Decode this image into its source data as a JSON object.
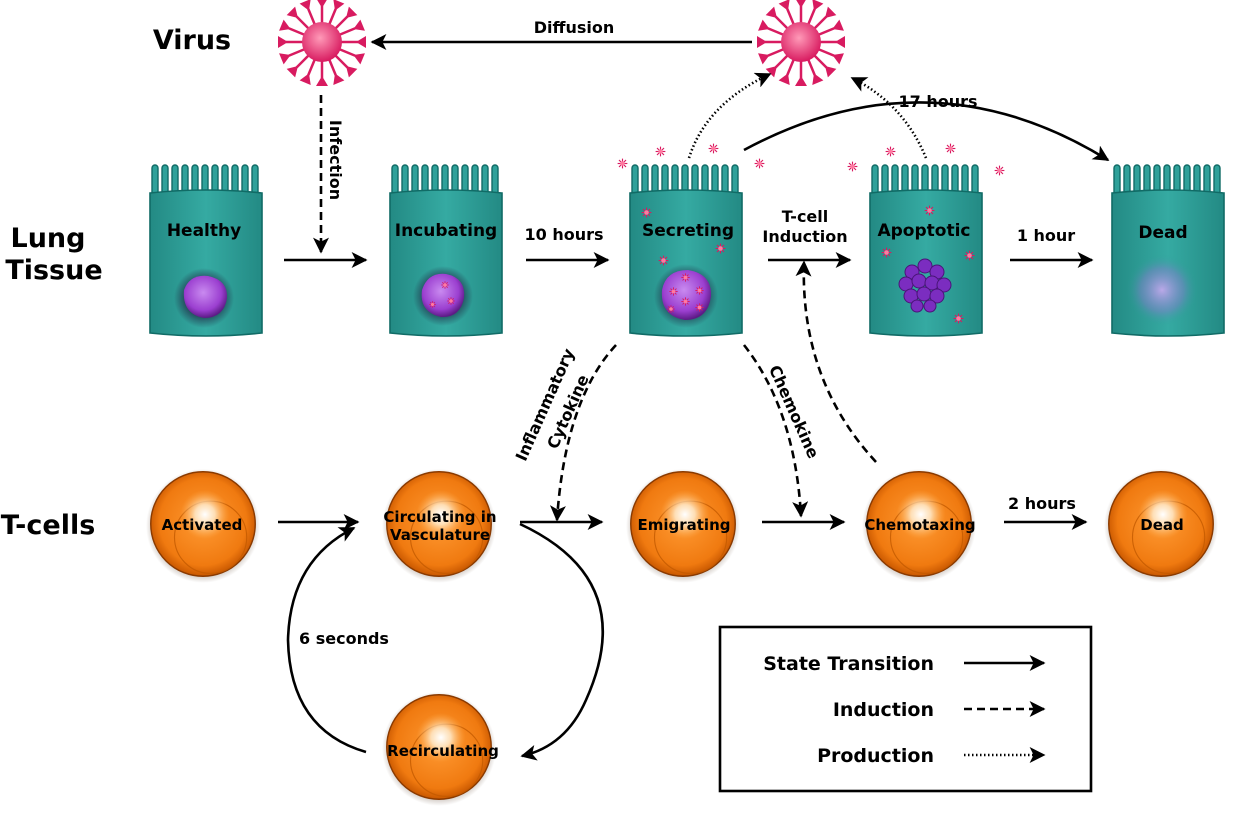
{
  "rows": {
    "virus": "Virus",
    "lung_line1": "Lung",
    "lung_line2": "Tissue",
    "tcells": "T-cells"
  },
  "lung_cells": {
    "healthy": "Healthy",
    "incubating": "Incubating",
    "secreting": "Secreting",
    "apoptotic": "Apoptotic",
    "dead": "Dead"
  },
  "t_cells": {
    "activated": "Activated",
    "circulating_line1": "Circulating in",
    "circulating_line2": "Vasculature",
    "emigrating": "Emigrating",
    "chemotaxing": "Chemotaxing",
    "dead": "Dead",
    "recirculating": "Recirculating"
  },
  "arrows": {
    "diffusion": "Diffusion",
    "infection": "Infection",
    "ten_hours": "10 hours",
    "seventeen_hours": "17 hours",
    "tcell_induction_line1": "T-cell",
    "tcell_induction_line2": "Induction",
    "one_hour": "1 hour",
    "inflammatory_line1": "Inflammatory",
    "inflammatory_line2": "Cytokine",
    "chemokine": "Chemokine",
    "two_hours": "2 hours",
    "six_seconds": "6 seconds"
  },
  "legend": {
    "state_transition": "State Transition",
    "induction": "Induction",
    "production": "Production"
  },
  "colors": {
    "cell_body": "#2a9d96",
    "cell_edge": "#116b66",
    "nucleus": "#9b3fd0",
    "tcell": "#f07a10",
    "virus": "#d81b60"
  }
}
